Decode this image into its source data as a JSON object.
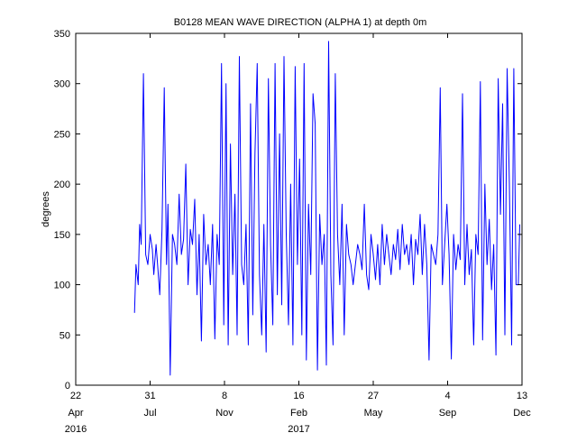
{
  "chart_data": {
    "type": "line",
    "title": "B0128 MEAN WAVE DIRECTION (ALPHA 1) at depth 0m",
    "xlabel": "",
    "ylabel": "degrees",
    "ylim": [
      0,
      350
    ],
    "yticks": [
      0,
      50,
      100,
      150,
      200,
      250,
      300,
      350
    ],
    "xlim": [
      "2016-04-22",
      "2017-12-13"
    ],
    "xticks": [
      {
        "date": "2016-04-22",
        "day": "22",
        "month": "Apr",
        "year": "2016"
      },
      {
        "date": "2016-07-31",
        "day": "31",
        "month": "Jul",
        "year": ""
      },
      {
        "date": "2016-11-08",
        "day": "8",
        "month": "Nov",
        "year": ""
      },
      {
        "date": "2017-02-16",
        "day": "16",
        "month": "Feb",
        "year": "2017"
      },
      {
        "date": "2017-05-27",
        "day": "27",
        "month": "May",
        "year": ""
      },
      {
        "date": "2017-09-04",
        "day": "4",
        "month": "Sep",
        "year": ""
      },
      {
        "date": "2017-12-13",
        "day": "13",
        "month": "Dec",
        "year": ""
      }
    ],
    "grid": false,
    "series_color": "#0000ff",
    "series": [
      {
        "name": "",
        "x": [
          "2016-07-10",
          "2016-07-12",
          "2016-07-15",
          "2016-07-17",
          "2016-07-19",
          "2016-07-22",
          "2016-07-25",
          "2016-07-28",
          "2016-07-31",
          "2016-08-03",
          "2016-08-05",
          "2016-08-08",
          "2016-08-10",
          "2016-08-13",
          "2016-08-16",
          "2016-08-19",
          "2016-08-22",
          "2016-08-24",
          "2016-08-27",
          "2016-08-30",
          "2016-09-02",
          "2016-09-05",
          "2016-09-08",
          "2016-09-11",
          "2016-09-14",
          "2016-09-17",
          "2016-09-20",
          "2016-09-23",
          "2016-09-26",
          "2016-09-29",
          "2016-10-02",
          "2016-10-05",
          "2016-10-08",
          "2016-10-11",
          "2016-10-14",
          "2016-10-17",
          "2016-10-20",
          "2016-10-23",
          "2016-10-26",
          "2016-10-29",
          "2016-11-01",
          "2016-11-04",
          "2016-11-07",
          "2016-11-10",
          "2016-11-13",
          "2016-11-16",
          "2016-11-19",
          "2016-11-22",
          "2016-11-25",
          "2016-11-28",
          "2016-12-01",
          "2016-12-04",
          "2016-12-07",
          "2016-12-10",
          "2016-12-13",
          "2016-12-16",
          "2016-12-19",
          "2016-12-22",
          "2016-12-25",
          "2016-12-28",
          "2016-12-31",
          "2017-01-03",
          "2017-01-06",
          "2017-01-09",
          "2017-01-12",
          "2017-01-15",
          "2017-01-18",
          "2017-01-21",
          "2017-01-24",
          "2017-01-27",
          "2017-01-30",
          "2017-02-02",
          "2017-02-05",
          "2017-02-08",
          "2017-02-11",
          "2017-02-14",
          "2017-02-17",
          "2017-02-20",
          "2017-02-23",
          "2017-02-26",
          "2017-03-01",
          "2017-03-04",
          "2017-03-07",
          "2017-03-10",
          "2017-03-13",
          "2017-03-16",
          "2017-03-19",
          "2017-03-22",
          "2017-03-25",
          "2017-03-28",
          "2017-03-31",
          "2017-04-03",
          "2017-04-06",
          "2017-04-09",
          "2017-04-12",
          "2017-04-15",
          "2017-04-18",
          "2017-04-21",
          "2017-04-24",
          "2017-04-27",
          "2017-04-30",
          "2017-05-03",
          "2017-05-06",
          "2017-05-09",
          "2017-05-12",
          "2017-05-15",
          "2017-05-18",
          "2017-05-21",
          "2017-05-24",
          "2017-05-27",
          "2017-05-30",
          "2017-06-02",
          "2017-06-05",
          "2017-06-08",
          "2017-06-11",
          "2017-06-14",
          "2017-06-17",
          "2017-06-20",
          "2017-06-23",
          "2017-06-26",
          "2017-06-29",
          "2017-07-02",
          "2017-07-05",
          "2017-07-08",
          "2017-07-11",
          "2017-07-14",
          "2017-07-17",
          "2017-07-20",
          "2017-07-23",
          "2017-07-26",
          "2017-07-29",
          "2017-08-01",
          "2017-08-04",
          "2017-08-07",
          "2017-08-10",
          "2017-08-13",
          "2017-08-16",
          "2017-08-19",
          "2017-08-22",
          "2017-08-25",
          "2017-08-28",
          "2017-08-31",
          "2017-09-03",
          "2017-09-06",
          "2017-09-09",
          "2017-09-12",
          "2017-09-15",
          "2017-09-18",
          "2017-09-21",
          "2017-09-24",
          "2017-09-27",
          "2017-09-30",
          "2017-10-03",
          "2017-10-06",
          "2017-10-09",
          "2017-10-12",
          "2017-10-15",
          "2017-10-18",
          "2017-10-21",
          "2017-10-24",
          "2017-10-27",
          "2017-10-30",
          "2017-11-02",
          "2017-11-05",
          "2017-11-08",
          "2017-11-11",
          "2017-11-14",
          "2017-11-17",
          "2017-11-20",
          "2017-11-23",
          "2017-11-26",
          "2017-11-29",
          "2017-12-02",
          "2017-12-05",
          "2017-12-08",
          "2017-12-10"
        ],
        "y": [
          72,
          120,
          100,
          160,
          140,
          310,
          130,
          120,
          150,
          135,
          110,
          140,
          120,
          90,
          155,
          296,
          120,
          180,
          10,
          150,
          140,
          120,
          190,
          130,
          145,
          220,
          100,
          155,
          140,
          185,
          90,
          150,
          44,
          170,
          120,
          140,
          100,
          160,
          46,
          150,
          120,
          320,
          60,
          300,
          40,
          240,
          110,
          190,
          50,
          327,
          120,
          100,
          160,
          40,
          280,
          70,
          230,
          320,
          110,
          50,
          160,
          33,
          305,
          140,
          60,
          320,
          90,
          250,
          80,
          327,
          150,
          60,
          200,
          40,
          317,
          120,
          225,
          50,
          320,
          25,
          180,
          110,
          290,
          260,
          15,
          170,
          120,
          150,
          20,
          342,
          110,
          40,
          310,
          150,
          100,
          180,
          50,
          160,
          130,
          120,
          100,
          120,
          140,
          130,
          115,
          180,
          110,
          95,
          150,
          130,
          105,
          140,
          100,
          160,
          120,
          150,
          130,
          110,
          140,
          125,
          155,
          115,
          160,
          130,
          140,
          120,
          150,
          100,
          145,
          130,
          170,
          110,
          160,
          120,
          25,
          140,
          130,
          120,
          150,
          296,
          100,
          140,
          180,
          130,
          26,
          150,
          115,
          140,
          125,
          290,
          100,
          160,
          110,
          135,
          40,
          150,
          130,
          302,
          45,
          200,
          120,
          165,
          95,
          140,
          30,
          305,
          170,
          280,
          50,
          315,
          200,
          40,
          315,
          100,
          100,
          160
        ]
      }
    ]
  }
}
